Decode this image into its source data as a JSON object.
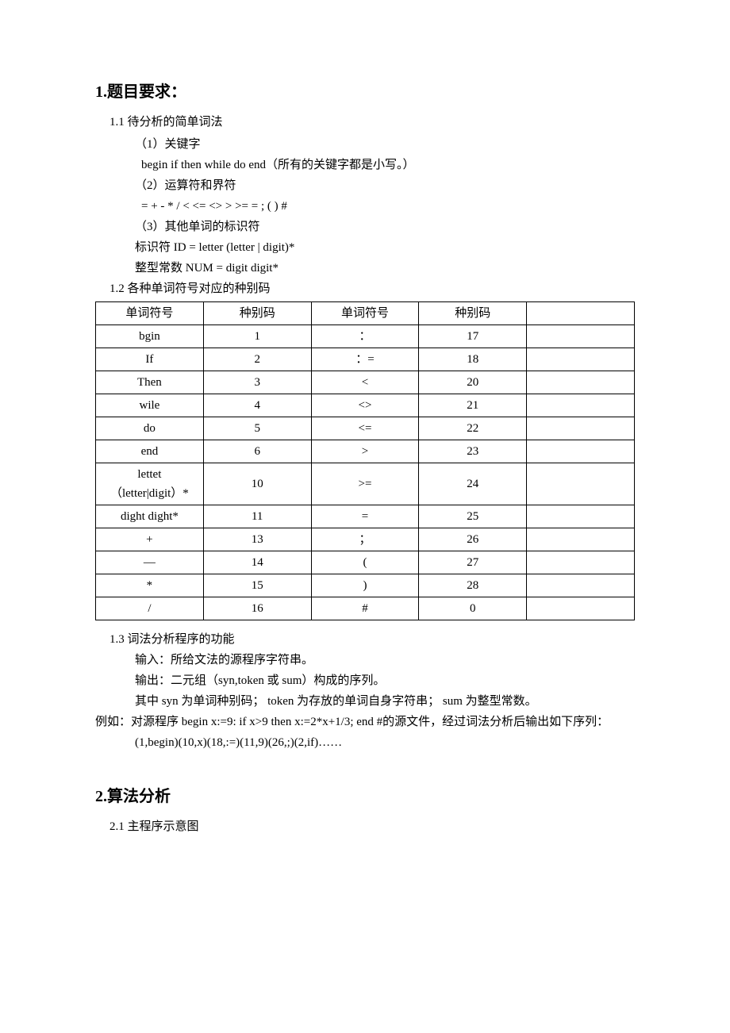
{
  "section1": {
    "heading": "1.题目要求：",
    "sub1": "1.1 待分析的简单词法",
    "item1_label": "（1）关键字",
    "item1_content": "begin   if   then   while   do   end（所有的关键字都是小写。）",
    "item2_label": "（2）运算符和界符",
    "item2_content": "=   +   -   *   /   <   <=   <>   >   >=   =   ; (    )    #",
    "item3_label": "（3）其他单词的标识符",
    "item3_line1": "标识符   ID = letter (letter | digit)*",
    "item3_line2": "整型常数  NUM = digit digit*",
    "sub2": "1.2 各种单词符号对应的种别码",
    "sub3_title": "1.3 词法分析程序的功能",
    "sub3_l1": "输入：所给文法的源程序字符串。",
    "sub3_l2": "输出：二元组（syn,token 或 sum）构成的序列。",
    "sub3_l3": "其中 syn 为单词种别码；  token 为存放的单词自身字符串；  sum 为整型常数。",
    "sub3_l4": "例如：对源程序 begin x:=9: if x>9 then x:=2*x+1/3; end #的源文件，经过词法分析后输出如下序列：",
    "sub3_l5": "(1,begin)(10,x)(18,:=)(11,9)(26,;)(2,if)……"
  },
  "table": {
    "headers": {
      "c1": "单词符号",
      "c2": "种别码",
      "c3": "单词符号",
      "c4": "种别码"
    },
    "rows": [
      {
        "c1": "bgin",
        "c2": "1",
        "c3": "：",
        "c4": "17"
      },
      {
        "c1": "If",
        "c2": "2",
        "c3": "：=",
        "c4": "18"
      },
      {
        "c1": "Then",
        "c2": "3",
        "c3": "<",
        "c4": "20"
      },
      {
        "c1": "wile",
        "c2": "4",
        "c3": "<>",
        "c4": "21"
      },
      {
        "c1": "do",
        "c2": "5",
        "c3": "<=",
        "c4": "22"
      },
      {
        "c1": "end",
        "c2": "6",
        "c3": ">",
        "c4": "23"
      },
      {
        "c1": "lettet（letter|digit）*",
        "c2": "10",
        "c3": ">=",
        "c4": "24",
        "tall": true
      },
      {
        "c1": "dight dight*",
        "c2": "11",
        "c3": "=",
        "c4": "25"
      },
      {
        "c1": "+",
        "c2": "13",
        "c3": "；",
        "c4": "26"
      },
      {
        "c1": "—",
        "c2": "14",
        "c3": "(",
        "c4": "27"
      },
      {
        "c1": "*",
        "c2": "15",
        "c3": ")",
        "c4": "28"
      },
      {
        "c1": "/",
        "c2": "16",
        "c3": "#",
        "c4": "0"
      }
    ]
  },
  "section2": {
    "heading": "2.算法分析",
    "sub1": "2.1 主程序示意图"
  }
}
